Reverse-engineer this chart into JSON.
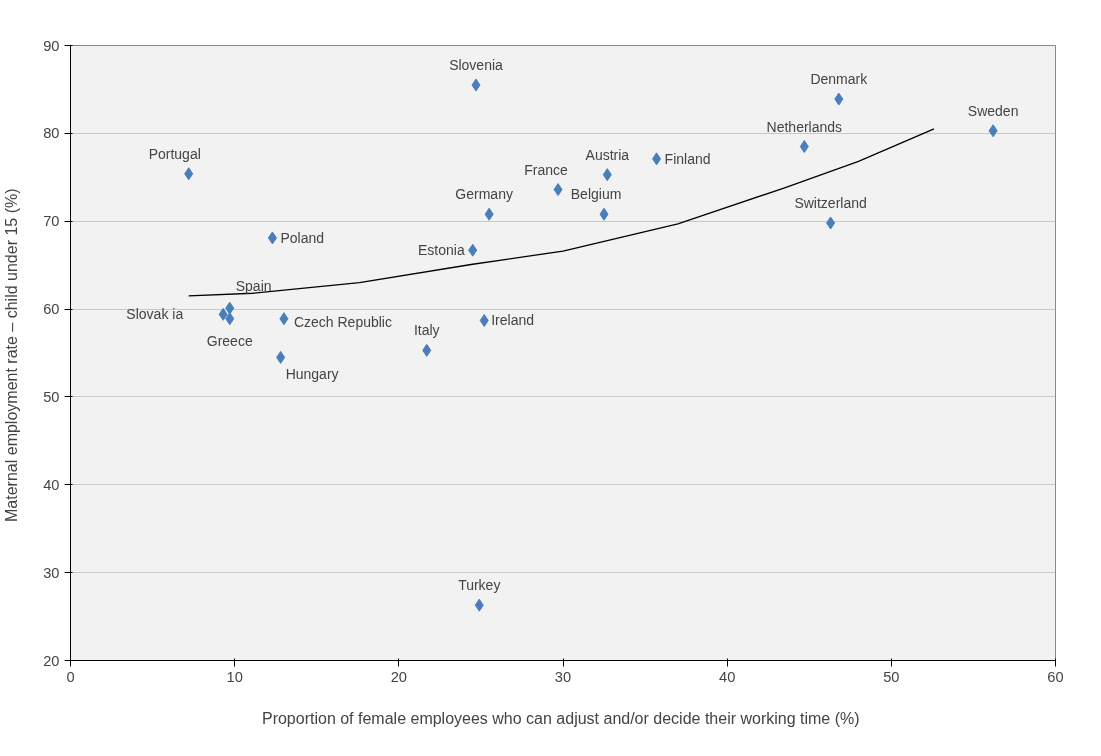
{
  "chart_data": {
    "type": "scatter",
    "xlabel": "Proportion of female employees who can adjust and/or decide their working time  (%)",
    "ylabel": "Maternal employment rate – child under 15  (%)",
    "xlim": [
      0,
      60
    ],
    "ylim": [
      20,
      90
    ],
    "xticks": [
      0,
      10,
      20,
      30,
      40,
      50,
      60
    ],
    "yticks": [
      20,
      30,
      40,
      50,
      60,
      70,
      80,
      90
    ],
    "grid": "y",
    "series": [
      {
        "marker": "diamond",
        "color": "#4a7ebb",
        "x": [
          24.7,
          46.8,
          56.2,
          44.7,
          35.7,
          32.7,
          7.2,
          29.7,
          25.5,
          32.5,
          46.3,
          12.3,
          24.5,
          9.7,
          9.3,
          9.7,
          13.0,
          25.2,
          21.7,
          12.8,
          24.9
        ],
        "values": [
          85.5,
          83.9,
          80.3,
          78.5,
          77.1,
          75.3,
          75.4,
          73.6,
          70.8,
          70.8,
          69.8,
          68.1,
          66.7,
          60.1,
          59.4,
          58.9,
          58.9,
          58.7,
          55.3,
          54.5,
          26.3
        ]
      },
      {
        "type": "line",
        "marker": "none",
        "color": "#000000",
        "x": [
          7.2,
          11.1,
          17.6,
          24.5,
          30.0,
          37.0,
          43.5,
          48.0,
          52.6
        ],
        "values": [
          61.5,
          61.8,
          63.0,
          65.1,
          66.6,
          69.7,
          73.8,
          76.8,
          80.5
        ]
      }
    ],
    "annotations": [
      {
        "text": "Slovenia",
        "x": 24.7,
        "y": 85.5
      },
      {
        "text": "Denmark",
        "x": 46.8,
        "y": 83.9
      },
      {
        "text": "Sweden",
        "x": 56.2,
        "y": 80.3
      },
      {
        "text": "Netherlands",
        "x": 44.7,
        "y": 78.5
      },
      {
        "text": "Finland",
        "x": 35.7,
        "y": 77.1
      },
      {
        "text": "Austria",
        "x": 32.7,
        "y": 75.3
      },
      {
        "text": "Portugal",
        "x": 7.2,
        "y": 75.4
      },
      {
        "text": "France",
        "x": 29.7,
        "y": 73.6
      },
      {
        "text": "Germany",
        "x": 25.5,
        "y": 70.8
      },
      {
        "text": "Belgium",
        "x": 32.5,
        "y": 70.8
      },
      {
        "text": "Switzerland",
        "x": 46.3,
        "y": 69.8
      },
      {
        "text": "Poland",
        "x": 12.3,
        "y": 68.1
      },
      {
        "text": "Estonia",
        "x": 24.5,
        "y": 66.7
      },
      {
        "text": "Spain",
        "x": 9.7,
        "y": 60.1
      },
      {
        "text": "Slovak ia",
        "x": 9.3,
        "y": 59.4
      },
      {
        "text": "Greece",
        "x": 9.7,
        "y": 58.9
      },
      {
        "text": "Czech Republic",
        "x": 13.0,
        "y": 58.9
      },
      {
        "text": "Ireland",
        "x": 25.2,
        "y": 58.7
      },
      {
        "text": "Italy",
        "x": 21.7,
        "y": 55.3
      },
      {
        "text": "Hungary",
        "x": 12.8,
        "y": 54.5
      },
      {
        "text": "Turkey",
        "x": 24.9,
        "y": 26.3
      }
    ]
  }
}
